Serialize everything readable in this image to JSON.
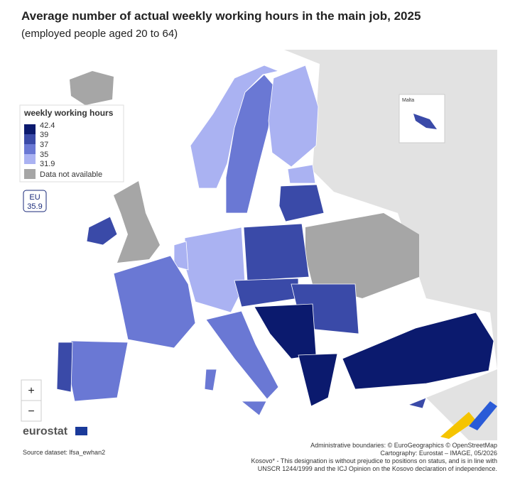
{
  "header": {
    "title": "Average number of actual weekly working hours in the main job, 2025",
    "subtitle": "(employed people aged 20 to 64)"
  },
  "legend": {
    "title": "weekly working hours",
    "breaks": [
      42.4,
      39,
      37,
      35,
      31.9
    ],
    "na_label": "Data not available"
  },
  "eu_box": {
    "label": "EU",
    "value": 35.9
  },
  "inset": {
    "label": "Malta"
  },
  "zoom": {
    "in": "+",
    "out": "−"
  },
  "logo": "eurostat",
  "source": "Source dataset: lfsa_ewhan2",
  "credits": [
    "Administrative boundaries: © EuroGeographics © OpenStreetMap",
    "Cartography: Eurostat – IMAGE, 05/2026",
    "Kosovo* - This designation is without prejudice to positions on status, and is in line with",
    "UNSCR 1244/1999 and the ICJ Opinion on the Kosovo declaration of independence."
  ]
}
